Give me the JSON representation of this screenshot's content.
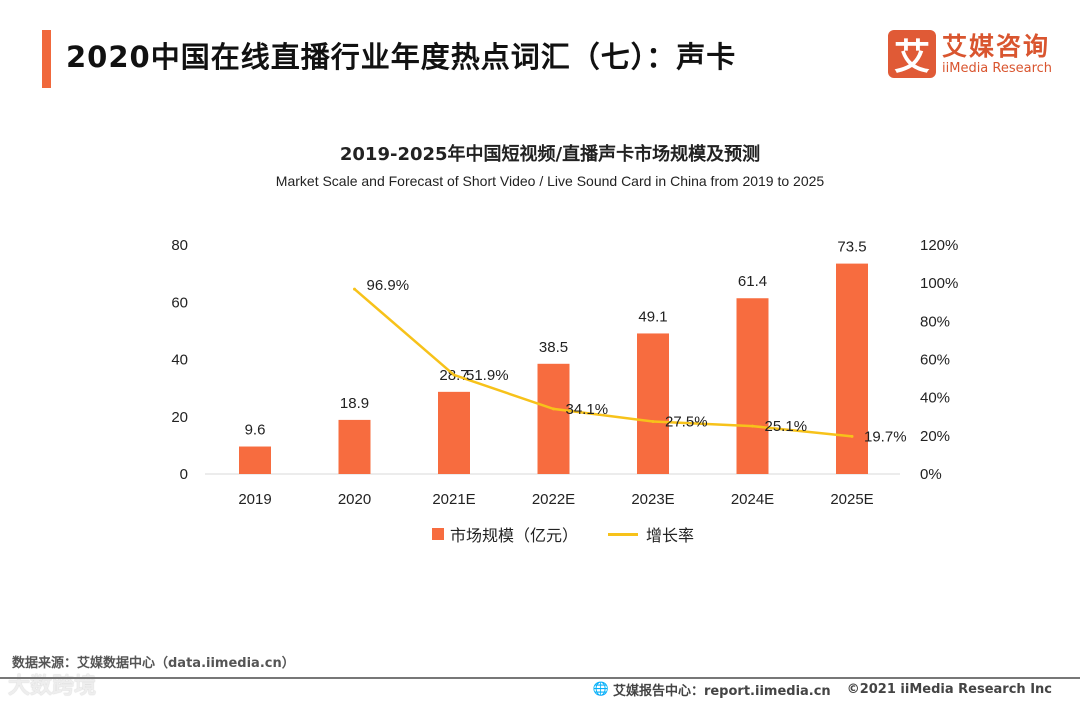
{
  "header": {
    "title": "2020中国在线直播行业年度热点词汇（七）：声卡"
  },
  "logo": {
    "mark": "艾",
    "cn": "艾媒咨询",
    "en": "iiMedia Research"
  },
  "chart_data": {
    "type": "bar+line",
    "title": "2019-2025年中国短视频/直播声卡市场规模及预测",
    "subtitle": "Market Scale and Forecast of Short Video / Live Sound Card in China from 2019 to 2025",
    "categories": [
      "2019",
      "2020",
      "2021E",
      "2022E",
      "2023E",
      "2024E",
      "2025E"
    ],
    "series": [
      {
        "name": "市场规模（亿元）",
        "type": "bar",
        "axis": "left",
        "color": "#f76c3f",
        "values": [
          9.6,
          18.9,
          28.7,
          38.5,
          49.1,
          61.4,
          73.5
        ],
        "labels": [
          "9.6",
          "18.9",
          "28.7",
          "38.5",
          "49.1",
          "61.4",
          "73.5"
        ]
      },
      {
        "name": "增长率",
        "type": "line",
        "axis": "right",
        "color": "#f7c21a",
        "values": [
          null,
          96.9,
          51.9,
          34.1,
          27.5,
          25.1,
          19.7
        ],
        "labels": [
          "",
          "96.9%",
          "51.9%",
          "34.1%",
          "27.5%",
          "25.1%",
          "19.7%"
        ]
      }
    ],
    "ylim": [
      0,
      80
    ],
    "yticks": [
      "0",
      "20",
      "40",
      "60",
      "80"
    ],
    "y2lim": [
      0,
      120
    ],
    "y2ticks": [
      "0%",
      "20%",
      "40%",
      "60%",
      "80%",
      "100%",
      "120%"
    ],
    "legend": "bottom"
  },
  "footer": {
    "source": "数据来源：艾媒数据中心（data.iimedia.cn）",
    "watermark": "大数跨境",
    "report": "艾媒报告中心：report.iimedia.cn",
    "copyright": "©2021  iiMedia Research  Inc"
  }
}
